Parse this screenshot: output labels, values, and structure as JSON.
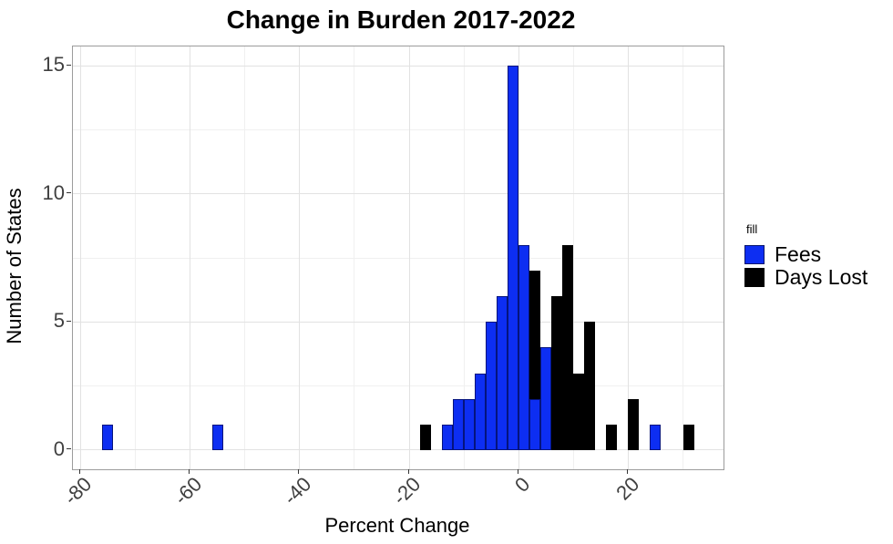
{
  "chart_data": {
    "type": "bar",
    "subtype": "histogram-identity-overlay",
    "title": "Change in Burden 2017-2022",
    "xlabel": "Percent Change",
    "ylabel": "Number of States",
    "legend_title": "fill",
    "xlim": [
      -81.4,
      37.4
    ],
    "ylim": [
      -0.75,
      15.75
    ],
    "x_tick_labels": [
      "-80",
      "-60",
      "-40",
      "-20",
      "0",
      "20"
    ],
    "x_tick_values": [
      -80,
      -60,
      -40,
      -20,
      0,
      20
    ],
    "x_minor_gridlines": [
      -70,
      -50,
      -30,
      -10,
      10,
      30
    ],
    "y_tick_labels": [
      "0",
      "5",
      "10",
      "15"
    ],
    "y_tick_values": [
      0,
      5,
      10,
      15
    ],
    "y_minor_gridlines": [
      2.5,
      7.5,
      12.5
    ],
    "grid": true,
    "legend_position": "right",
    "bin_width": 2,
    "series": [
      {
        "name": "Fees",
        "color": "#0d2ef2",
        "bins": [
          {
            "center": -75,
            "count": 1
          },
          {
            "center": -55,
            "count": 1
          },
          {
            "center": -13,
            "count": 1
          },
          {
            "center": -11,
            "count": 2
          },
          {
            "center": -9,
            "count": 2
          },
          {
            "center": -7,
            "count": 3
          },
          {
            "center": -5,
            "count": 5
          },
          {
            "center": -3,
            "count": 6
          },
          {
            "center": -1,
            "count": 15
          },
          {
            "center": 1,
            "count": 8
          },
          {
            "center": 3,
            "count": 2
          },
          {
            "center": 5,
            "count": 4
          },
          {
            "center": 25,
            "count": 1
          }
        ]
      },
      {
        "name": "Days Lost",
        "color": "#000000",
        "bins": [
          {
            "center": -17,
            "count": 1
          },
          {
            "center": 3,
            "count": 7
          },
          {
            "center": 7,
            "count": 6
          },
          {
            "center": 9,
            "count": 8
          },
          {
            "center": 11,
            "count": 3
          },
          {
            "center": 13,
            "count": 5
          },
          {
            "center": 17,
            "count": 1
          },
          {
            "center": 21,
            "count": 2
          },
          {
            "center": 31,
            "count": 1
          }
        ]
      }
    ]
  }
}
